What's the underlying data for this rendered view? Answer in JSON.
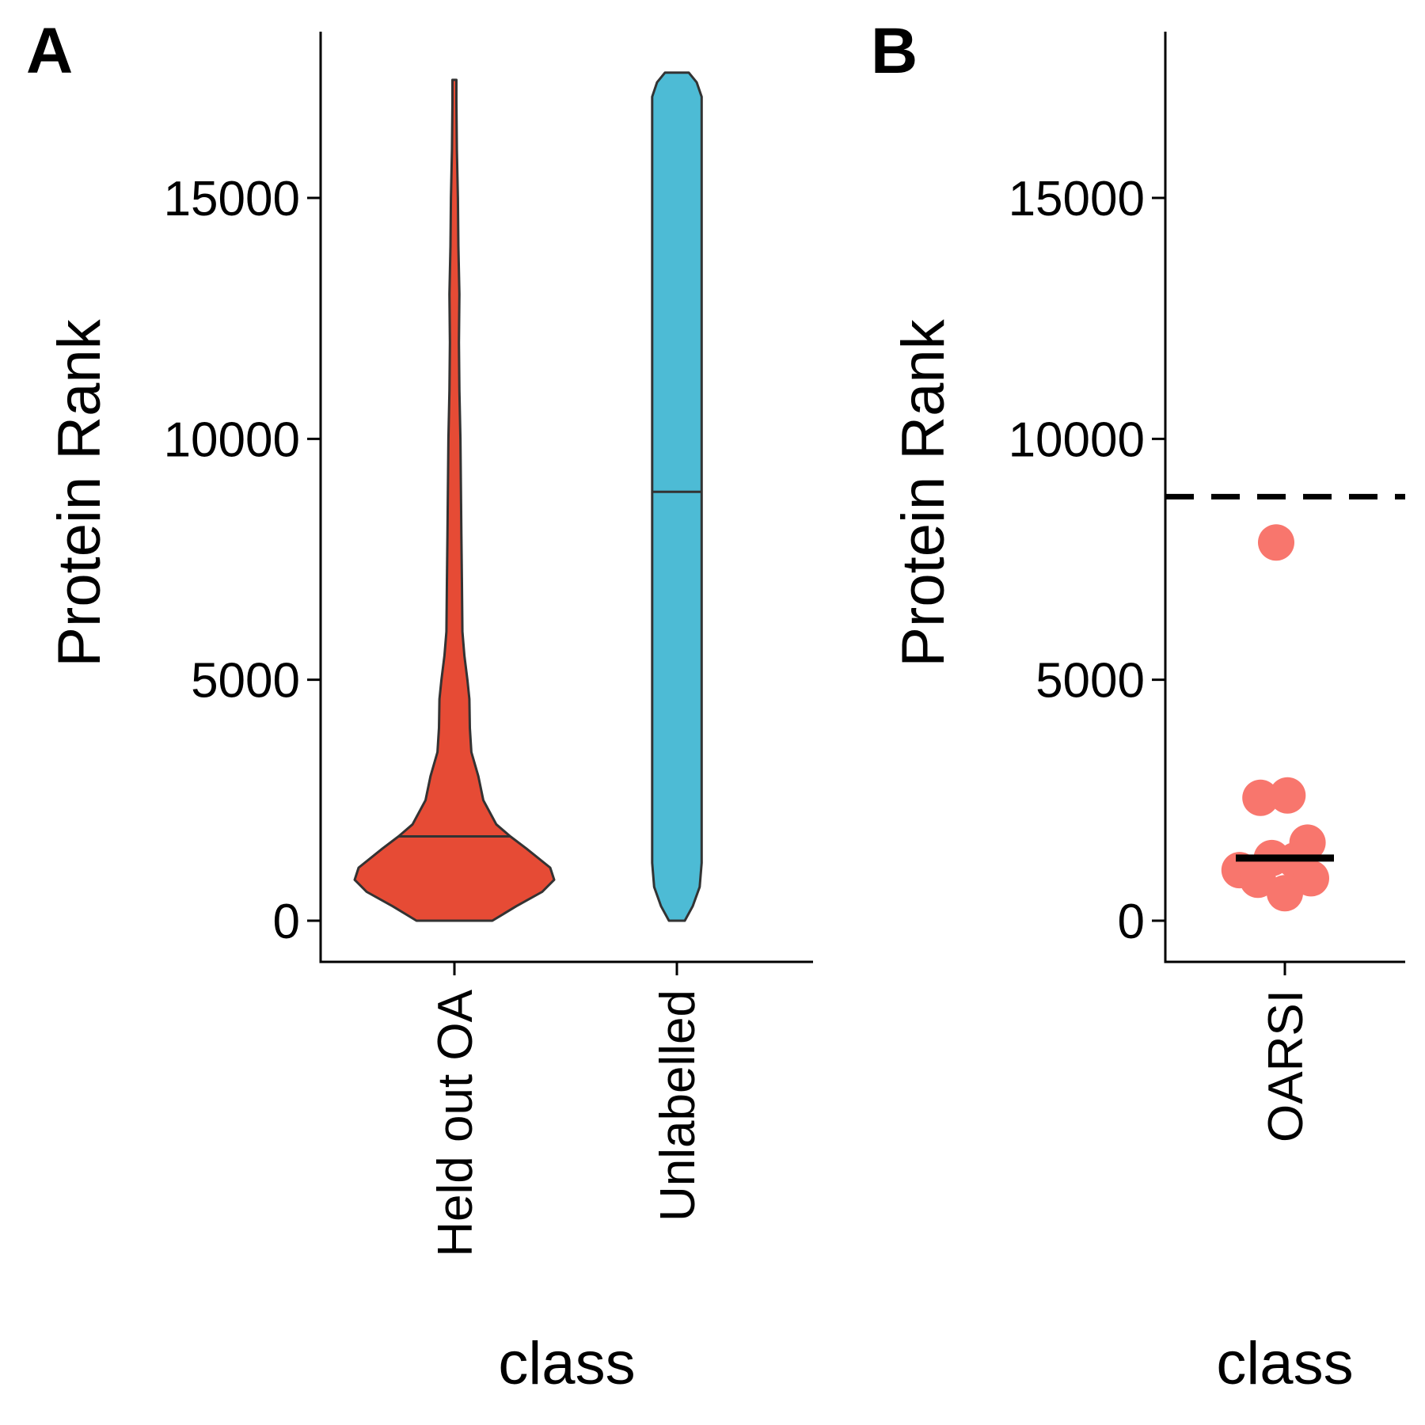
{
  "chart_data": [
    {
      "panel_label": "A",
      "type": "violin",
      "xlabel": "class",
      "ylabel": "Protein Rank",
      "ylim": [
        -1700,
        18400
      ],
      "yticks": [
        0,
        5000,
        10000,
        15000
      ],
      "categories": [
        "Held out OA",
        "Unlabelled"
      ],
      "series": [
        {
          "category": "Held out OA",
          "color": "#E64B35",
          "median": 1750,
          "min": 0,
          "max": 17450,
          "density": [
            [
              0,
              0.38
            ],
            [
              300,
              0.62
            ],
            [
              600,
              0.88
            ],
            [
              850,
              1.0
            ],
            [
              1100,
              0.96
            ],
            [
              1500,
              0.72
            ],
            [
              1750,
              0.56
            ],
            [
              2000,
              0.42
            ],
            [
              2500,
              0.29
            ],
            [
              3000,
              0.24
            ],
            [
              3500,
              0.17
            ],
            [
              4000,
              0.155
            ],
            [
              4600,
              0.15
            ],
            [
              5000,
              0.13
            ],
            [
              5500,
              0.1
            ],
            [
              6000,
              0.08
            ],
            [
              7000,
              0.075
            ],
            [
              8000,
              0.07
            ],
            [
              9000,
              0.065
            ],
            [
              10000,
              0.06
            ],
            [
              11000,
              0.05
            ],
            [
              12000,
              0.045
            ],
            [
              13000,
              0.05
            ],
            [
              14000,
              0.04
            ],
            [
              15000,
              0.035
            ],
            [
              16000,
              0.025
            ],
            [
              17000,
              0.02
            ],
            [
              17450,
              0.02
            ]
          ]
        },
        {
          "category": "Unlabelled",
          "color": "#4DBBD5",
          "median": 8900,
          "min": 0,
          "max": 17600,
          "density": [
            [
              0,
              0.08
            ],
            [
              300,
              0.16
            ],
            [
              700,
              0.23
            ],
            [
              1200,
              0.25
            ],
            [
              2000,
              0.25
            ],
            [
              8000,
              0.25
            ],
            [
              16000,
              0.25
            ],
            [
              17100,
              0.25
            ],
            [
              17400,
              0.2
            ],
            [
              17600,
              0.12
            ]
          ]
        }
      ]
    },
    {
      "panel_label": "B",
      "type": "scatter",
      "xlabel": "class",
      "ylabel": "Protein Rank",
      "ylim": [
        -1700,
        18400
      ],
      "yticks": [
        0,
        5000,
        10000,
        15000
      ],
      "categories": [
        "OARSI"
      ],
      "point_color": "#F8766D",
      "points": [
        {
          "offset": -0.1,
          "y": 7850
        },
        {
          "offset": -0.28,
          "y": 2550
        },
        {
          "offset": 0.03,
          "y": 2600
        },
        {
          "offset": 0.26,
          "y": 1620
        },
        {
          "offset": -0.15,
          "y": 1300
        },
        {
          "offset": 0.12,
          "y": 1250
        },
        {
          "offset": -0.52,
          "y": 1050
        },
        {
          "offset": -0.31,
          "y": 850
        },
        {
          "offset": 0.3,
          "y": 880
        },
        {
          "offset": 0.0,
          "y": 570
        }
      ],
      "median": 1300,
      "reference_line": 8800
    }
  ]
}
